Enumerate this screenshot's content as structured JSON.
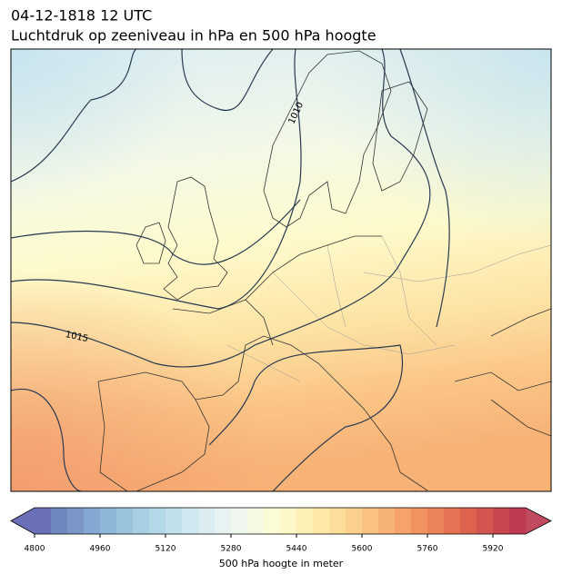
{
  "title": {
    "line1": "04-12-1818 12 UTC",
    "line2": "Luchtdruk op zeeniveau in hPa en 500 hPa hoogte"
  },
  "contour_labels": [
    "1015",
    "1010"
  ],
  "colorbar": {
    "label": "500 hPa hoogte in meter",
    "range": [
      4800,
      6000
    ],
    "ticks": [
      4800,
      4960,
      5120,
      5280,
      5440,
      5600,
      5760,
      5920
    ],
    "under_color": "#6a6fb8",
    "over_color": "#c14a60",
    "colors": [
      "#6a70b6",
      "#7086bf",
      "#7a97c8",
      "#84a8d1",
      "#8eb6d8",
      "#9ac4de",
      "#a6cfe3",
      "#b3d8e8",
      "#c1e0ec",
      "#cfe8f0",
      "#dcedf2",
      "#e7f3f3",
      "#eff7ef",
      "#f6fae5",
      "#fbfbd6",
      "#fef8c8",
      "#fef1b7",
      "#fde8a8",
      "#fcdd9a",
      "#fbd08d",
      "#f9c281",
      "#f7b375",
      "#f5a36a",
      "#f2935f",
      "#ec8258",
      "#e57252",
      "#dd634f",
      "#d3554f",
      "#c9474f",
      "#be3a52"
    ]
  }
}
